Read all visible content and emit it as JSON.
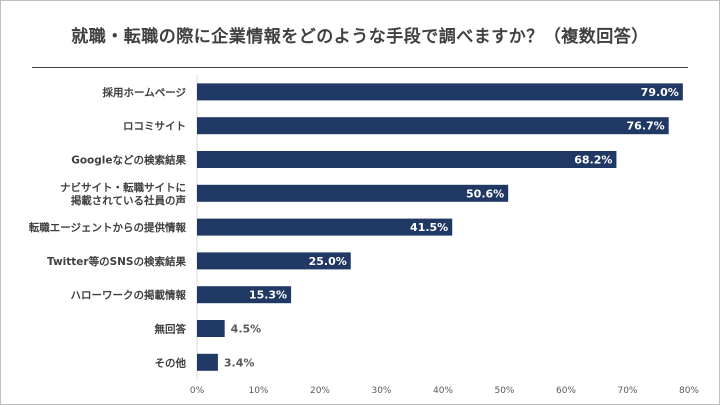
{
  "chart_data": {
    "type": "bar",
    "orientation": "horizontal",
    "title": "就職・転職の際に企業情報をどのような手段で調べますか？（複数回答）",
    "categories": [
      [
        "採用ホームページ"
      ],
      [
        "ロコミサイト"
      ],
      [
        "Googleなどの検索結果"
      ],
      [
        "ナビサイト・転職サイトに",
        "掲載されている社員の声"
      ],
      [
        "転職エージェントからの提供情報"
      ],
      [
        "Twitter等のSNSの検索結果"
      ],
      [
        "ハローワークの掲載情報"
      ],
      [
        "無回答"
      ],
      [
        "その他"
      ]
    ],
    "values": [
      79.0,
      76.7,
      68.2,
      50.6,
      41.5,
      25.0,
      15.3,
      4.5,
      3.4
    ],
    "value_labels": [
      "79.0%",
      "76.7%",
      "68.2%",
      "50.6%",
      "41.5%",
      "25.0%",
      "15.3%",
      "4.5%",
      "3.4%"
    ],
    "xlim": [
      0,
      80
    ],
    "x_ticks": [
      "0%",
      "10%",
      "20%",
      "30%",
      "40%",
      "50%",
      "60%",
      "70%",
      "80%"
    ],
    "grid": false,
    "bar_color": "#203864",
    "label_color_inside": "#ffffff",
    "label_color_outside": "#595959"
  }
}
